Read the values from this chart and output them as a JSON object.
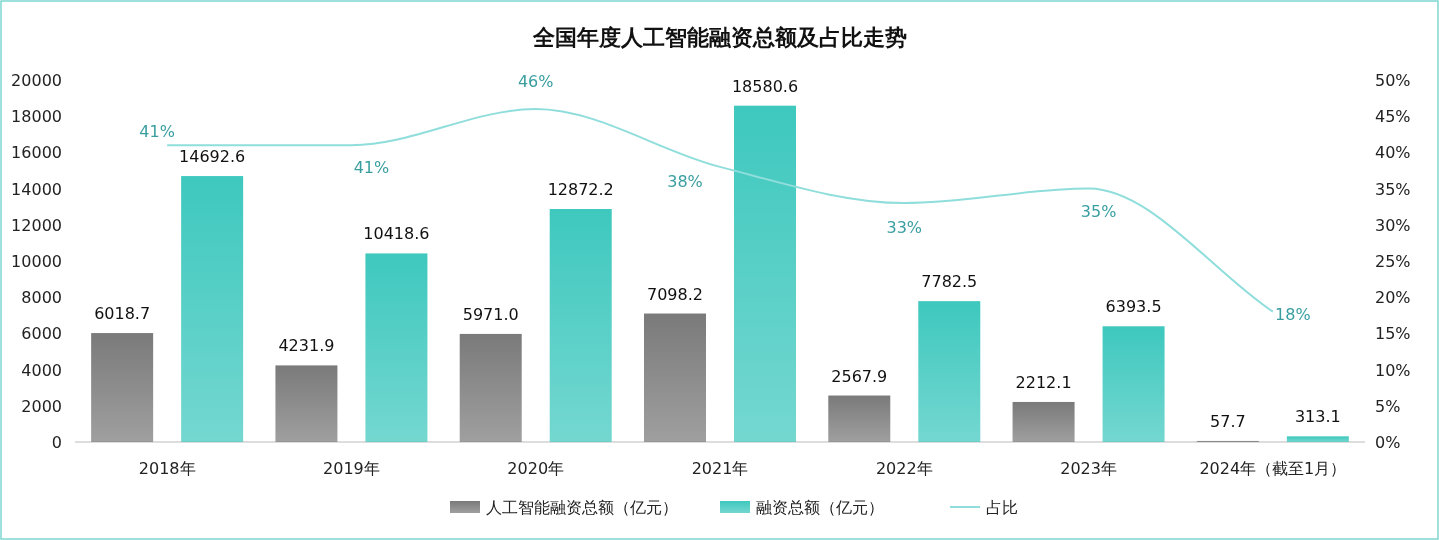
{
  "chart_data": {
    "type": "bar",
    "title": "全国年度人工智能融资总额及占比走势",
    "categories": [
      "2018年",
      "2019年",
      "2020年",
      "2021年",
      "2022年",
      "2023年",
      "2024年（截至1月）"
    ],
    "series": [
      {
        "name": "人工智能融资总额（亿元）",
        "color": "#7a7a7a",
        "values": [
          6018.7,
          4231.9,
          5971.0,
          7098.2,
          2567.9,
          2212.1,
          57.7
        ],
        "value_labels": [
          "6018.7",
          "4231.9",
          "5971.0",
          "7098.2",
          "2567.9",
          "2212.1",
          "57.7"
        ]
      },
      {
        "name": "融资总额（亿元）",
        "color": "#3ec8be",
        "values": [
          14692.6,
          10418.6,
          12872.2,
          18580.6,
          7782.5,
          6393.5,
          313.1
        ],
        "value_labels": [
          "14692.6",
          "10418.6",
          "12872.2",
          "18580.6",
          "7782.5",
          "6393.5",
          "313.1"
        ]
      },
      {
        "name": "占比",
        "type": "line",
        "axis": "y2",
        "color": "#8fdedb",
        "values": [
          41,
          41,
          46,
          38,
          33,
          35,
          18
        ],
        "value_labels": [
          "41%",
          "41%",
          "46%",
          "38%",
          "33%",
          "35%",
          "18%"
        ]
      }
    ],
    "ylim": [
      0,
      20000
    ],
    "yticks": [
      0,
      2000,
      4000,
      6000,
      8000,
      10000,
      12000,
      14000,
      16000,
      18000,
      20000
    ],
    "y2lim": [
      0,
      50
    ],
    "y2ticks": [
      {
        "value": 0,
        "label": "0%"
      },
      {
        "value": 5,
        "label": "5%"
      },
      {
        "value": 10,
        "label": "10%"
      },
      {
        "value": 15,
        "label": "15%"
      },
      {
        "value": 20,
        "label": "20%"
      },
      {
        "value": 25,
        "label": "25%"
      },
      {
        "value": 30,
        "label": "30%"
      },
      {
        "value": 35,
        "label": "35%"
      },
      {
        "value": 40,
        "label": "40%"
      },
      {
        "value": 45,
        "label": "45%"
      },
      {
        "value": 50,
        "label": "50%"
      }
    ],
    "grid": false,
    "legend": "bottom",
    "marker": "none"
  }
}
